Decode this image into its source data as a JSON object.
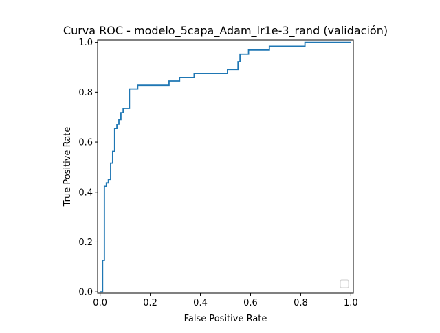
{
  "chart_data": {
    "type": "line",
    "title": "Curva ROC - modelo_5capa_Adam_lr1e-3_rand (validación)",
    "xlabel": "False Positive Rate",
    "ylabel": "True Positive Rate",
    "xlim": [
      -0.01,
      1.01
    ],
    "ylim": [
      -0.005,
      1.01
    ],
    "xticks": [
      0.0,
      0.2,
      0.4,
      0.6,
      0.8,
      1.0
    ],
    "xtick_labels": [
      "0.0",
      "0.2",
      "0.4",
      "0.6",
      "0.8",
      "1.0"
    ],
    "yticks": [
      0.0,
      0.2,
      0.4,
      0.6,
      0.8,
      1.0
    ],
    "ytick_labels": [
      "0.0",
      "0.2",
      "0.4",
      "0.6",
      "0.8",
      "1.0"
    ],
    "grid": false,
    "legend": {
      "placement": "lower-right",
      "entries": []
    },
    "series": [
      {
        "color": "#1f77b4",
        "x": [
          0.0,
          0.0,
          0.01,
          0.01,
          0.017,
          0.017,
          0.025,
          0.025,
          0.033,
          0.033,
          0.042,
          0.042,
          0.05,
          0.05,
          0.058,
          0.058,
          0.067,
          0.067,
          0.075,
          0.075,
          0.083,
          0.083,
          0.092,
          0.092,
          0.1,
          0.1,
          0.117,
          0.117,
          0.133,
          0.133,
          0.15,
          0.15,
          0.275,
          0.275,
          0.317,
          0.317,
          0.375,
          0.375,
          0.508,
          0.508,
          0.55,
          0.55,
          0.558,
          0.558,
          0.592,
          0.592,
          0.675,
          0.675,
          0.817,
          0.817,
          1.0
        ],
        "y": [
          0.0,
          0.0,
          0.0,
          0.127,
          0.127,
          0.423,
          0.423,
          0.437,
          0.437,
          0.451,
          0.451,
          0.516,
          0.516,
          0.563,
          0.563,
          0.655,
          0.655,
          0.672,
          0.672,
          0.69,
          0.69,
          0.718,
          0.718,
          0.735,
          0.735,
          0.735,
          0.735,
          0.813,
          0.813,
          0.813,
          0.813,
          0.828,
          0.828,
          0.845,
          0.845,
          0.859,
          0.859,
          0.875,
          0.875,
          0.891,
          0.891,
          0.922,
          0.922,
          0.953,
          0.953,
          0.969,
          0.969,
          0.984,
          0.984,
          1.0,
          1.0
        ]
      }
    ]
  }
}
